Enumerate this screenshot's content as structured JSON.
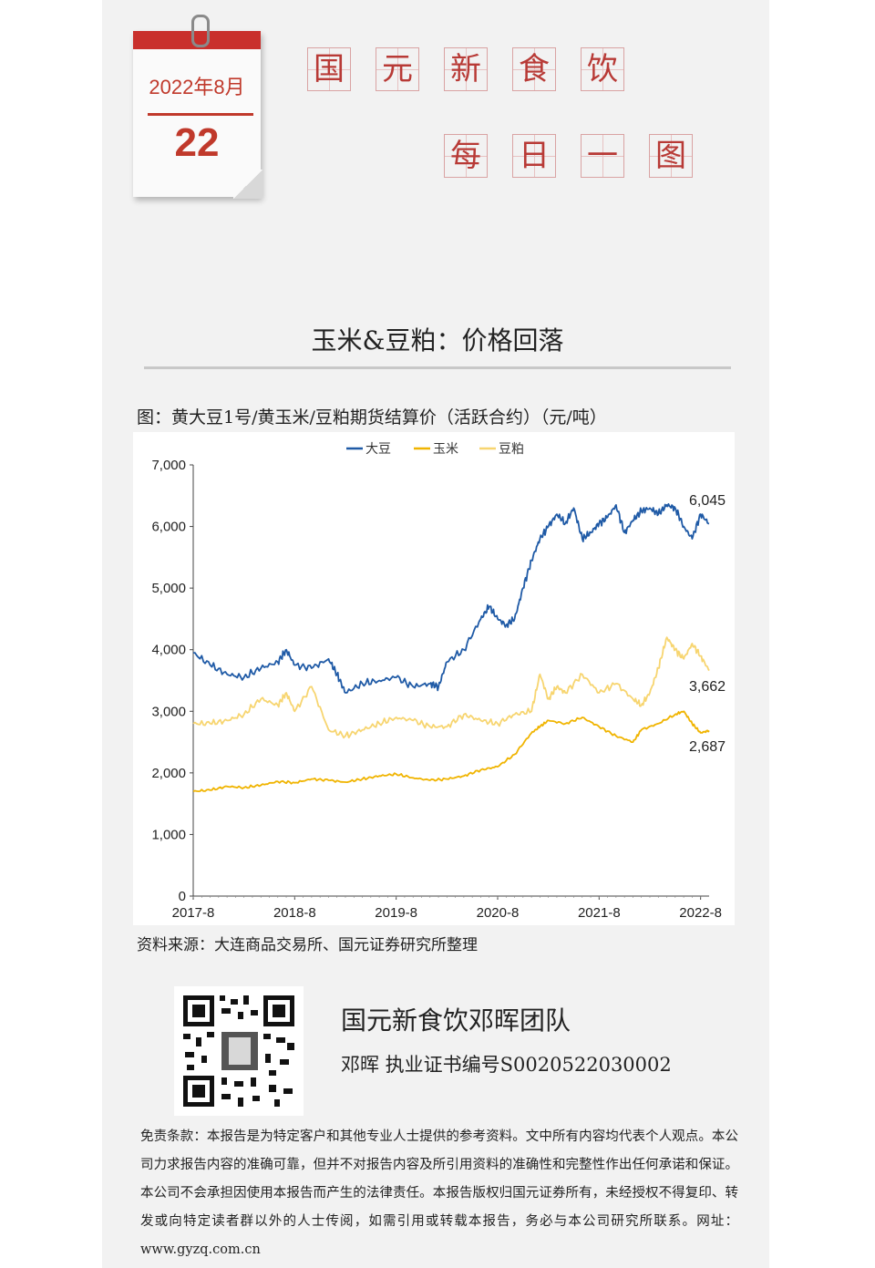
{
  "calendar": {
    "year_month": "2022年8月",
    "day": "22"
  },
  "header": {
    "line1": [
      "国",
      "元",
      "新",
      "食",
      "饮"
    ],
    "line2": [
      "每",
      "日",
      "一",
      "图"
    ]
  },
  "title": "玉米&豆粕：价格回落",
  "caption": "图：黄大豆1号/黄玉米/豆粕期货结算价（活跃合约）（元/吨）",
  "source": "资料来源：大连商品交易所、国元证券研究所整理",
  "team": "国元新食饮邓晖团队",
  "cert": "邓晖 执业证书编号S0020522030002",
  "disclaimer": "免责条款：本报告是为特定客户和其他专业人士提供的参考资料。文中所有内容均代表个人观点。本公司力求报告内容的准确可靠，但并不对报告内容及所引用资料的准确性和完整性作出任何承诺和保证。本公司不会承担因使用本报告而产生的法律责任。本报告版权归国元证券所有，未经授权不得复印、转发或向特定读者群以外的人士传阅，如需引用或转载本报告，务必与本公司研究所联系。网址：www.gyzq.com.cn",
  "colors": {
    "soybean": "#1f5aa6",
    "corn": "#f0b400",
    "meal": "#f7d570",
    "accent": "#c0392b"
  },
  "chart_data": {
    "type": "line",
    "title": "",
    "xlabel": "",
    "ylabel": "",
    "ylim": [
      0,
      7000
    ],
    "yticks": [
      0,
      1000,
      2000,
      3000,
      4000,
      5000,
      6000,
      7000
    ],
    "ytick_labels": [
      "0",
      "1,000",
      "2,000",
      "3,000",
      "4,000",
      "5,000",
      "6,000",
      "7,000"
    ],
    "xticks": [
      "2017-8",
      "2018-8",
      "2019-8",
      "2020-8",
      "2021-8",
      "2022-8"
    ],
    "xlim": [
      2017.583,
      2022.667
    ],
    "legend": "top-center",
    "grid": false,
    "series": [
      {
        "name": "大豆",
        "color": "#1f5aa6",
        "end_label": "6,045",
        "x": [
          2017.583,
          2017.75,
          2017.917,
          2018.083,
          2018.25,
          2018.417,
          2018.5,
          2018.583,
          2018.75,
          2018.917,
          2019.0,
          2019.083,
          2019.25,
          2019.417,
          2019.583,
          2019.75,
          2019.917,
          2020.0,
          2020.083,
          2020.25,
          2020.417,
          2020.5,
          2020.583,
          2020.667,
          2020.75,
          2020.833,
          2020.917,
          2021.0,
          2021.083,
          2021.167,
          2021.25,
          2021.333,
          2021.417,
          2021.5,
          2021.583,
          2021.667,
          2021.75,
          2021.833,
          2021.917,
          2022.0,
          2022.083,
          2022.167,
          2022.25,
          2022.333,
          2022.417,
          2022.5,
          2022.583,
          2022.667
        ],
        "y": [
          3950,
          3750,
          3600,
          3550,
          3700,
          3800,
          4000,
          3750,
          3700,
          3850,
          3600,
          3300,
          3450,
          3500,
          3550,
          3400,
          3450,
          3400,
          3800,
          4000,
          4500,
          4700,
          4500,
          4400,
          4500,
          5000,
          5450,
          5800,
          6000,
          6200,
          6050,
          6300,
          5800,
          5900,
          6050,
          6150,
          6350,
          5900,
          6100,
          6250,
          6300,
          6200,
          6350,
          6300,
          6000,
          5800,
          6200,
          6045
        ]
      },
      {
        "name": "玉米",
        "color": "#f0b400",
        "end_label": "2,687",
        "x": [
          2017.583,
          2017.75,
          2017.917,
          2018.083,
          2018.25,
          2018.417,
          2018.583,
          2018.75,
          2018.917,
          2019.083,
          2019.25,
          2019.417,
          2019.583,
          2019.75,
          2019.917,
          2020.083,
          2020.25,
          2020.417,
          2020.583,
          2020.75,
          2020.917,
          2021.0,
          2021.083,
          2021.25,
          2021.417,
          2021.583,
          2021.75,
          2021.917,
          2022.0,
          2022.167,
          2022.333,
          2022.417,
          2022.5,
          2022.583,
          2022.667
        ],
        "y": [
          1700,
          1720,
          1780,
          1760,
          1800,
          1860,
          1840,
          1900,
          1880,
          1850,
          1900,
          1950,
          1980,
          1920,
          1880,
          1900,
          1950,
          2050,
          2100,
          2300,
          2650,
          2750,
          2850,
          2800,
          2900,
          2750,
          2600,
          2500,
          2700,
          2800,
          2950,
          3000,
          2800,
          2650,
          2687
        ]
      },
      {
        "name": "豆粕",
        "color": "#f7d570",
        "end_label": "3,662",
        "x": [
          2017.583,
          2017.75,
          2017.917,
          2018.083,
          2018.25,
          2018.417,
          2018.5,
          2018.583,
          2018.75,
          2018.917,
          2019.083,
          2019.25,
          2019.417,
          2019.583,
          2019.75,
          2019.917,
          2020.083,
          2020.25,
          2020.417,
          2020.583,
          2020.75,
          2020.917,
          2021.0,
          2021.083,
          2021.167,
          2021.25,
          2021.417,
          2021.583,
          2021.75,
          2021.917,
          2022.0,
          2022.083,
          2022.167,
          2022.25,
          2022.333,
          2022.417,
          2022.5,
          2022.583,
          2022.667
        ],
        "y": [
          2800,
          2800,
          2850,
          2950,
          3200,
          3100,
          3300,
          3000,
          3400,
          2700,
          2600,
          2700,
          2800,
          2900,
          2850,
          2750,
          2750,
          2950,
          2850,
          2800,
          2950,
          3000,
          3600,
          3200,
          3400,
          3300,
          3600,
          3300,
          3450,
          3200,
          3100,
          3300,
          3700,
          4200,
          4000,
          3850,
          4100,
          3900,
          3662
        ]
      }
    ]
  }
}
